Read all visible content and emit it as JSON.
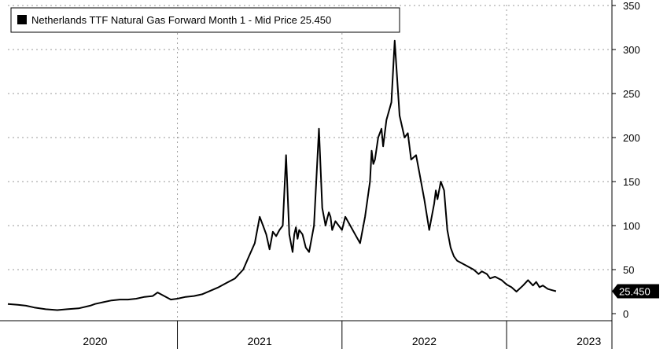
{
  "chart_data": {
    "type": "line",
    "title": "",
    "legend": {
      "label": "Netherlands TTF Natural Gas Forward Month 1 - Mid Price 25.450",
      "placement": "top-left",
      "swatch_color": "#000000"
    },
    "xlabel": "",
    "ylabel": "",
    "ylim": [
      0,
      350
    ],
    "y_ticks": [
      0,
      50,
      100,
      150,
      200,
      250,
      300,
      350
    ],
    "x_range": [
      2019.97,
      2023.64
    ],
    "x_ticks": [
      {
        "label": "2020",
        "center": 2020.5
      },
      {
        "label": "2021",
        "center": 2021.5
      },
      {
        "label": "2022",
        "center": 2022.5
      },
      {
        "label": "2023",
        "center": 2023.5
      }
    ],
    "x_boundaries": [
      2021.0,
      2022.0,
      2023.0
    ],
    "grid": true,
    "y_axis_side": "right",
    "last_value_label": "25.450",
    "series": [
      {
        "color": "#000000",
        "x": [
          2019.97,
          2020.03,
          2020.08,
          2020.13,
          2020.2,
          2020.27,
          2020.33,
          2020.4,
          2020.47,
          2020.5,
          2020.55,
          2020.6,
          2020.65,
          2020.7,
          2020.75,
          2020.8,
          2020.85,
          2020.88,
          2020.92,
          2020.96,
          2021.0,
          2021.05,
          2021.1,
          2021.15,
          2021.2,
          2021.25,
          2021.3,
          2021.35,
          2021.4,
          2021.43,
          2021.47,
          2021.5,
          2021.52,
          2021.54,
          2021.56,
          2021.58,
          2021.6,
          2021.62,
          2021.64,
          2021.66,
          2021.68,
          2021.7,
          2021.71,
          2021.72,
          2021.73,
          2021.74,
          2021.76,
          2021.78,
          2021.8,
          2021.83,
          2021.86,
          2021.88,
          2021.9,
          2021.91,
          2021.92,
          2021.93,
          2021.94,
          2021.96,
          2021.98,
          2022.0,
          2022.02,
          2022.05,
          2022.08,
          2022.11,
          2022.14,
          2022.17,
          2022.18,
          2022.19,
          2022.2,
          2022.22,
          2022.24,
          2022.25,
          2022.27,
          2022.3,
          2022.32,
          2022.35,
          2022.38,
          2022.4,
          2022.42,
          2022.45,
          2022.47,
          2022.5,
          2022.53,
          2022.56,
          2022.57,
          2022.58,
          2022.6,
          2022.62,
          2022.64,
          2022.66,
          2022.67,
          2022.68,
          2022.7,
          2022.72,
          2022.75,
          2022.78,
          2022.8,
          2022.83,
          2022.85,
          2022.88,
          2022.9,
          2022.93,
          2022.95,
          2022.97,
          2023.0,
          2023.03,
          2023.06,
          2023.1,
          2023.13,
          2023.16,
          2023.18,
          2023.2,
          2023.22,
          2023.25,
          2023.27,
          2023.3
        ],
        "values": [
          11,
          10,
          9,
          7,
          5,
          4,
          5,
          6,
          9,
          11,
          13,
          15,
          16,
          16,
          17,
          19,
          20,
          24,
          20,
          16,
          17,
          19,
          20,
          22,
          26,
          30,
          35,
          40,
          50,
          63,
          80,
          110,
          100,
          90,
          73,
          93,
          88,
          95,
          100,
          180,
          90,
          70,
          90,
          98,
          85,
          95,
          90,
          75,
          70,
          100,
          210,
          120,
          100,
          108,
          115,
          110,
          95,
          105,
          100,
          95,
          110,
          100,
          90,
          80,
          110,
          150,
          185,
          170,
          175,
          200,
          210,
          190,
          220,
          240,
          310,
          225,
          200,
          205,
          175,
          180,
          160,
          130,
          95,
          125,
          140,
          130,
          150,
          140,
          95,
          75,
          70,
          65,
          60,
          58,
          55,
          52,
          50,
          45,
          48,
          45,
          40,
          42,
          40,
          38,
          33,
          30,
          25,
          32,
          38,
          32,
          36,
          30,
          32,
          28,
          27,
          25.45
        ]
      }
    ]
  }
}
